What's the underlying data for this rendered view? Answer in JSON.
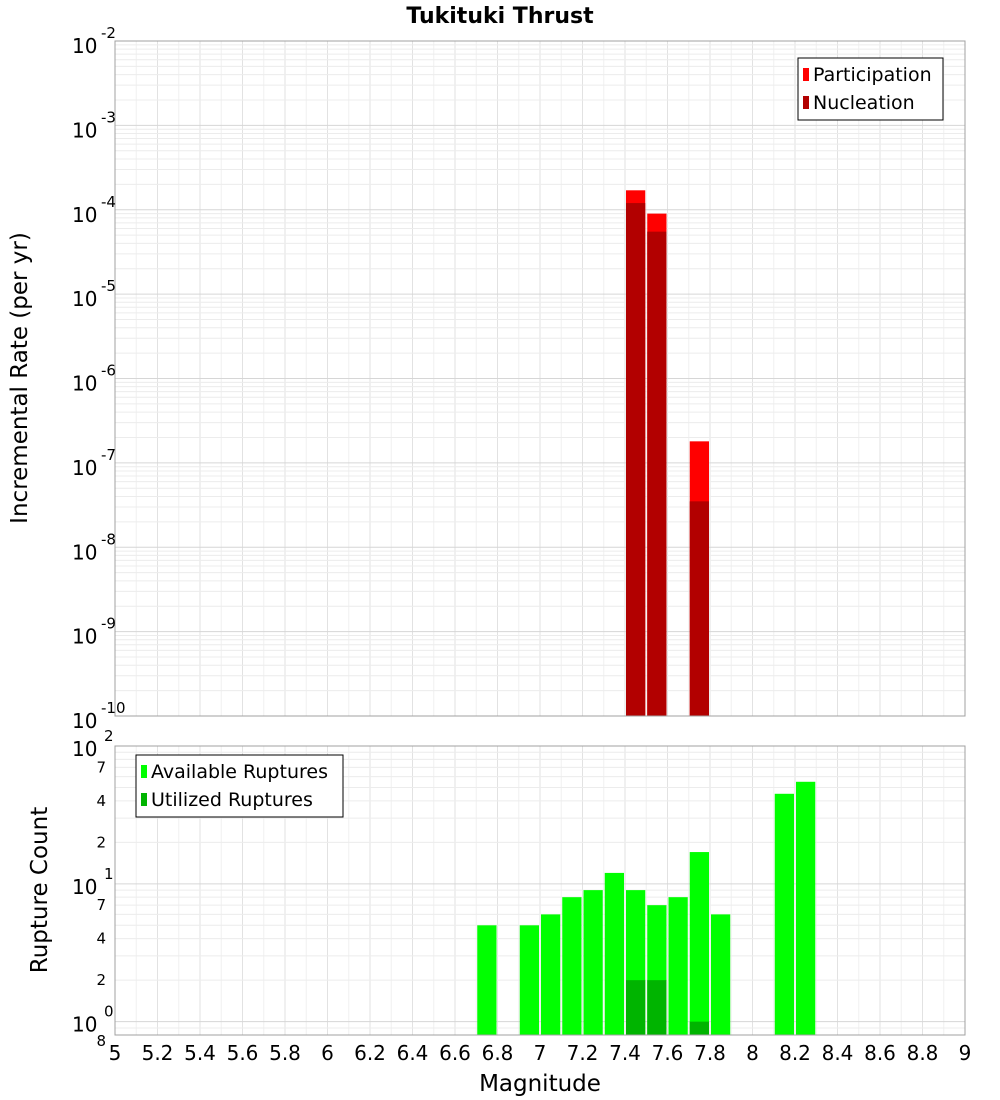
{
  "chart_data": {
    "title": "Tukituki Thrust",
    "xlabel": "Magnitude",
    "x_ticks": [
      "5",
      "5.2",
      "5.4",
      "5.6",
      "5.8",
      "6",
      "6.2",
      "6.4",
      "6.6",
      "6.8",
      "7",
      "7.2",
      "7.4",
      "7.6",
      "7.8",
      "8",
      "8.2",
      "8.4",
      "8.6",
      "8.8",
      "9"
    ],
    "xlim": [
      5,
      9
    ],
    "bin_width": 0.1,
    "charts": [
      {
        "type": "bar",
        "ylabel": "Incremental Rate (per yr)",
        "scale": "log",
        "ylim": [
          1e-10,
          0.01
        ],
        "y_ticks": [
          {
            "base": "10",
            "exp": "-2"
          },
          {
            "base": "10",
            "exp": "-3"
          },
          {
            "base": "10",
            "exp": "-4"
          },
          {
            "base": "10",
            "exp": "-5"
          },
          {
            "base": "10",
            "exp": "-6"
          },
          {
            "base": "10",
            "exp": "-7"
          },
          {
            "base": "10",
            "exp": "-8"
          },
          {
            "base": "10",
            "exp": "-9"
          },
          {
            "base": "10",
            "exp": "-10"
          }
        ],
        "legend_position": "top-right",
        "series": [
          {
            "name": "Participation",
            "color": "#ff0000",
            "x": [
              7.45,
              7.55,
              7.75
            ],
            "values": [
              0.00017,
              9e-05,
              1.8e-07
            ]
          },
          {
            "name": "Nucleation",
            "color": "#b20000",
            "x": [
              7.45,
              7.55,
              7.75
            ],
            "values": [
              0.00012,
              5.5e-05,
              3.5e-08
            ]
          }
        ]
      },
      {
        "type": "bar",
        "ylabel": "Rupture Count",
        "scale": "log",
        "ylim": [
          0.8,
          100
        ],
        "y_major_ticks": [
          {
            "base": "10",
            "exp": "2"
          },
          {
            "base": "10",
            "exp": "1"
          },
          {
            "base": "10",
            "exp": "0"
          }
        ],
        "y_minor_ticks": [
          "7",
          "4",
          "2",
          "7",
          "4",
          "2",
          "8"
        ],
        "legend_position": "top-left",
        "series": [
          {
            "name": "Available Ruptures",
            "color": "#00ff00",
            "x": [
              6.75,
              6.95,
              7.05,
              7.15,
              7.25,
              7.35,
              7.45,
              7.55,
              7.65,
              7.75,
              7.85,
              8.15,
              8.25
            ],
            "values": [
              5,
              5,
              6,
              8,
              9,
              12,
              9,
              7,
              8,
              17,
              6,
              45,
              55
            ]
          },
          {
            "name": "Utilized Ruptures",
            "color": "#00b400",
            "x": [
              7.45,
              7.55,
              7.75
            ],
            "values": [
              2,
              2,
              1
            ]
          }
        ]
      }
    ]
  }
}
